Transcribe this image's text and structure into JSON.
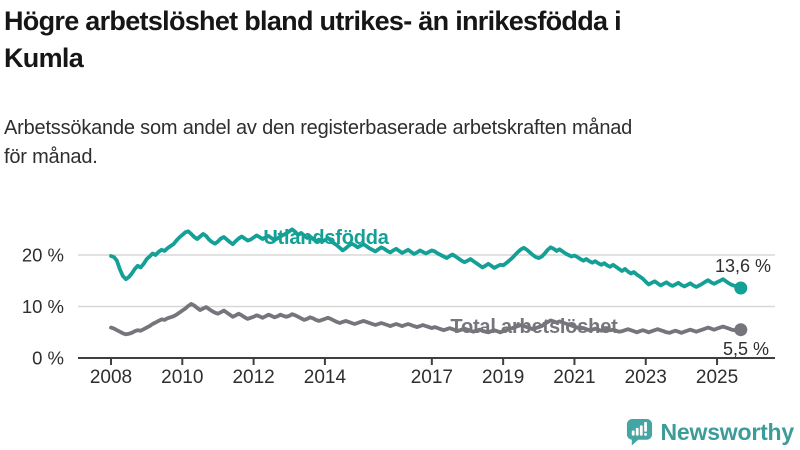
{
  "header": {
    "title_line1": "Högre arbetslöshet bland utrikes- än inrikesfödda i",
    "title_line2": "Kumla",
    "subtitle_line1": "Arbetssökande som andel av den registerbaserade arbetskraften månad",
    "subtitle_line2": "för månad."
  },
  "chart_data": {
    "type": "line",
    "title": "Högre arbetslöshet bland utrikes- än inrikesfödda i Kumla",
    "subtitle": "Arbetssökande som andel av den registerbaserade arbetskraften månad för månad.",
    "x_unit": "month",
    "x_start_year": 2008,
    "points_per_year": 12,
    "x_ticks": [
      2008,
      2010,
      2012,
      2014,
      2017,
      2019,
      2021,
      2023,
      2025
    ],
    "y_ticks": [
      0,
      10,
      20
    ],
    "y_tick_labels": [
      "0 %",
      "10 %",
      "20 %"
    ],
    "ylim": [
      0,
      29
    ],
    "grid": "horizontal",
    "legend_position": "inline-labels",
    "series": [
      {
        "name": "Utlandsfödda",
        "color": "#14A096",
        "end_label": "13,6 %",
        "end_value": 13.6,
        "values": [
          19.8,
          19.6,
          18.9,
          17.2,
          15.9,
          15.3,
          15.7,
          16.4,
          17.3,
          17.9,
          17.6,
          18.3,
          19.2,
          19.7,
          20.3,
          20.0,
          20.6,
          21.0,
          20.8,
          21.3,
          21.7,
          22.1,
          22.8,
          23.4,
          23.9,
          24.4,
          24.6,
          24.1,
          23.5,
          23.1,
          23.6,
          24.1,
          23.7,
          23.0,
          22.5,
          22.2,
          22.6,
          23.2,
          23.5,
          23.0,
          22.5,
          22.1,
          22.7,
          23.2,
          23.6,
          23.2,
          22.8,
          23.0,
          23.4,
          23.8,
          23.5,
          23.1,
          23.4,
          23.7,
          23.3,
          22.9,
          23.2,
          23.6,
          23.9,
          24.2,
          24.6,
          25.0,
          24.5,
          23.9,
          24.3,
          23.8,
          23.3,
          23.6,
          23.1,
          22.7,
          23.0,
          22.6,
          22.9,
          23.3,
          22.8,
          22.3,
          21.9,
          21.4,
          20.9,
          21.3,
          21.8,
          22.2,
          21.9,
          21.5,
          21.8,
          22.1,
          21.7,
          21.3,
          21.0,
          20.7,
          21.1,
          21.5,
          21.2,
          20.8,
          20.5,
          20.9,
          21.2,
          20.8,
          20.4,
          20.7,
          21.0,
          20.6,
          20.2,
          20.5,
          20.9,
          20.6,
          20.3,
          20.6,
          20.9,
          20.7,
          20.3,
          20.0,
          19.7,
          19.4,
          19.8,
          20.1,
          19.7,
          19.3,
          18.9,
          18.6,
          18.9,
          19.2,
          18.8,
          18.4,
          18.0,
          17.6,
          17.9,
          18.3,
          17.9,
          17.5,
          17.8,
          18.1,
          18.0,
          18.4,
          18.9,
          19.4,
          20.0,
          20.6,
          21.1,
          21.4,
          21.0,
          20.5,
          20.0,
          19.6,
          19.4,
          19.7,
          20.3,
          21.0,
          21.5,
          21.2,
          20.8,
          21.1,
          20.7,
          20.3,
          20.0,
          19.7,
          19.9,
          19.6,
          19.2,
          18.9,
          19.2,
          18.8,
          18.5,
          18.8,
          18.4,
          18.1,
          18.4,
          18.0,
          17.7,
          18.1,
          17.7,
          17.3,
          16.9,
          17.3,
          16.8,
          16.4,
          16.7,
          16.2,
          15.8,
          15.4,
          14.8,
          14.3,
          14.6,
          14.9,
          14.5,
          14.1,
          14.4,
          14.7,
          14.3,
          14.0,
          14.3,
          14.6,
          14.2,
          13.9,
          14.2,
          14.5,
          14.1,
          13.8,
          14.1,
          14.4,
          14.8,
          15.1,
          14.7,
          14.4,
          14.7,
          15.0,
          15.3,
          14.9,
          14.5,
          14.2,
          14.0,
          13.8,
          13.6
        ]
      },
      {
        "name": "Total arbetslöshet",
        "color": "#76757B",
        "end_label": "5,5 %",
        "end_value": 5.5,
        "values": [
          5.9,
          5.7,
          5.4,
          5.1,
          4.8,
          4.6,
          4.7,
          4.9,
          5.2,
          5.4,
          5.3,
          5.6,
          5.9,
          6.2,
          6.6,
          6.9,
          7.2,
          7.5,
          7.4,
          7.7,
          7.9,
          8.1,
          8.4,
          8.8,
          9.2,
          9.6,
          10.1,
          10.5,
          10.2,
          9.7,
          9.3,
          9.6,
          9.9,
          9.5,
          9.1,
          8.8,
          8.6,
          8.9,
          9.2,
          8.8,
          8.4,
          8.0,
          8.3,
          8.6,
          8.3,
          7.9,
          7.6,
          7.8,
          8.0,
          8.3,
          8.1,
          7.8,
          8.1,
          8.4,
          8.2,
          7.9,
          8.1,
          8.4,
          8.2,
          8.0,
          8.2,
          8.5,
          8.3,
          8.0,
          7.7,
          7.4,
          7.6,
          7.9,
          7.7,
          7.4,
          7.2,
          7.4,
          7.6,
          7.8,
          7.6,
          7.3,
          7.0,
          6.8,
          7.0,
          7.2,
          7.0,
          6.8,
          6.6,
          6.8,
          7.0,
          7.2,
          7.0,
          6.8,
          6.6,
          6.4,
          6.6,
          6.8,
          6.6,
          6.4,
          6.2,
          6.4,
          6.6,
          6.4,
          6.2,
          6.4,
          6.6,
          6.4,
          6.2,
          6.0,
          6.2,
          6.4,
          6.2,
          6.0,
          5.8,
          6.0,
          5.8,
          5.6,
          5.4,
          5.6,
          5.8,
          5.6,
          5.4,
          5.3,
          5.5,
          5.7,
          5.5,
          5.3,
          5.1,
          5.3,
          5.5,
          5.3,
          5.1,
          5.0,
          5.2,
          5.4,
          5.2,
          5.0,
          5.2,
          5.4,
          5.6,
          5.8,
          6.0,
          6.2,
          6.4,
          6.2,
          6.0,
          5.8,
          5.6,
          5.8,
          6.0,
          6.2,
          6.6,
          7.0,
          7.3,
          7.1,
          6.9,
          7.1,
          6.9,
          6.7,
          6.5,
          6.3,
          6.1,
          5.9,
          5.7,
          5.8,
          5.6,
          5.4,
          5.5,
          5.7,
          5.5,
          5.3,
          5.4,
          5.6,
          5.4,
          5.5,
          5.3,
          5.1,
          5.2,
          5.4,
          5.6,
          5.4,
          5.2,
          5.0,
          5.2,
          5.4,
          5.2,
          5.0,
          5.2,
          5.4,
          5.6,
          5.4,
          5.2,
          5.0,
          4.9,
          5.1,
          5.3,
          5.1,
          4.9,
          5.1,
          5.3,
          5.5,
          5.3,
          5.1,
          5.3,
          5.5,
          5.7,
          5.9,
          5.7,
          5.5,
          5.7,
          5.9,
          6.1,
          5.9,
          5.7,
          5.5,
          5.4,
          5.4,
          5.5
        ]
      }
    ]
  },
  "footer": {
    "brand": "Newsworthy"
  },
  "colors": {
    "accent_teal": "#14A096",
    "line_gray": "#76757B",
    "grid": "#D8D8D8",
    "axis": "#3F3F43",
    "text_dark": "#161616",
    "logo_teal": "#3C9C99"
  }
}
